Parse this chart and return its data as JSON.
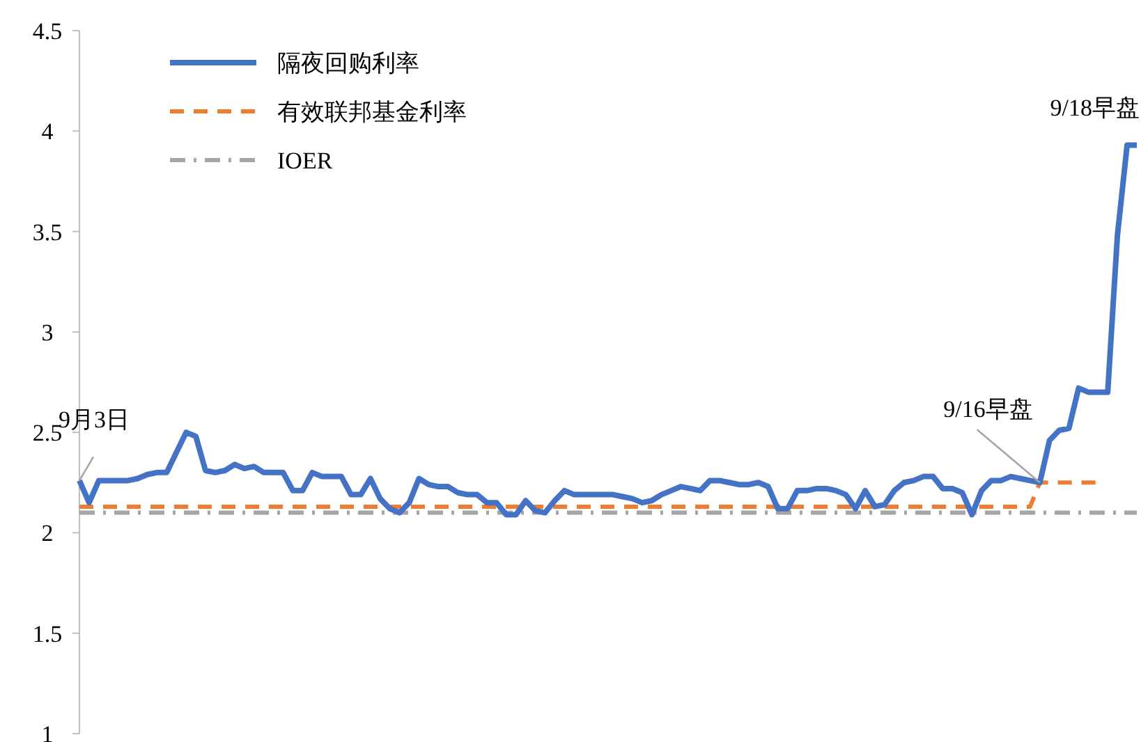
{
  "chart_data": {
    "type": "line",
    "categories": [
      null,
      null,
      null,
      null,
      null,
      null,
      null,
      null,
      null,
      null,
      null,
      null,
      null,
      null,
      null,
      null,
      null,
      null,
      null,
      null,
      null,
      null,
      null,
      null,
      null,
      null,
      null,
      null,
      null,
      null,
      null,
      null,
      null,
      null,
      null,
      null,
      null,
      null,
      null,
      null,
      null,
      null,
      null,
      null,
      null,
      null,
      null,
      null,
      null,
      null,
      null,
      null,
      null,
      null,
      null,
      null,
      null,
      null,
      null,
      null,
      null,
      null,
      null,
      null,
      null,
      null,
      null,
      null,
      null,
      null,
      null,
      null,
      null,
      null,
      null,
      null,
      null,
      null,
      null,
      null,
      null,
      null,
      null,
      null,
      null,
      null,
      null,
      null,
      null,
      null,
      null,
      null,
      null,
      null,
      null,
      null,
      null,
      null,
      null,
      null,
      null,
      null,
      null,
      null,
      null,
      null,
      null,
      null,
      null,
      null
    ],
    "series": [
      {
        "name": "隔夜回购利率",
        "color": "#4472c4",
        "line_style": "solid",
        "values": [
          2.26,
          2.15,
          2.26,
          2.26,
          2.26,
          2.26,
          2.27,
          2.29,
          2.3,
          2.3,
          2.4,
          2.5,
          2.48,
          2.31,
          2.3,
          2.31,
          2.34,
          2.32,
          2.33,
          2.3,
          2.3,
          2.3,
          2.21,
          2.21,
          2.3,
          2.28,
          2.28,
          2.28,
          2.19,
          2.19,
          2.27,
          2.17,
          2.12,
          2.1,
          2.15,
          2.27,
          2.24,
          2.23,
          2.23,
          2.2,
          2.19,
          2.19,
          2.15,
          2.15,
          2.09,
          2.09,
          2.16,
          2.11,
          2.1,
          2.16,
          2.21,
          2.19,
          2.19,
          2.19,
          2.19,
          2.19,
          2.18,
          2.17,
          2.15,
          2.16,
          2.19,
          2.21,
          2.23,
          2.22,
          2.21,
          2.26,
          2.26,
          2.25,
          2.24,
          2.24,
          2.25,
          2.23,
          2.12,
          2.12,
          2.21,
          2.21,
          2.22,
          2.22,
          2.21,
          2.19,
          2.12,
          2.21,
          2.13,
          2.14,
          2.21,
          2.25,
          2.26,
          2.28,
          2.28,
          2.22,
          2.22,
          2.2,
          2.09,
          2.21,
          2.26,
          2.26,
          2.28,
          2.27,
          2.26,
          2.25,
          2.46,
          2.51,
          2.52,
          2.72,
          2.7,
          2.7,
          2.7,
          3.48,
          3.93,
          3.93
        ]
      },
      {
        "name": "有效联邦基金利率",
        "color": "#ed7d31",
        "line_style": "dashed",
        "values": [
          2.13,
          2.13,
          2.13,
          2.13,
          2.13,
          2.13,
          2.13,
          2.13,
          2.13,
          2.13,
          2.13,
          2.13,
          2.13,
          2.13,
          2.13,
          2.13,
          2.13,
          2.13,
          2.13,
          2.13,
          2.13,
          2.13,
          2.13,
          2.13,
          2.13,
          2.13,
          2.13,
          2.13,
          2.13,
          2.13,
          2.13,
          2.13,
          2.13,
          2.13,
          2.13,
          2.13,
          2.13,
          2.13,
          2.13,
          2.13,
          2.13,
          2.13,
          2.13,
          2.13,
          2.13,
          2.13,
          2.13,
          2.13,
          2.13,
          2.13,
          2.13,
          2.13,
          2.13,
          2.13,
          2.13,
          2.13,
          2.13,
          2.13,
          2.13,
          2.13,
          2.13,
          2.13,
          2.13,
          2.13,
          2.13,
          2.13,
          2.13,
          2.13,
          2.13,
          2.13,
          2.13,
          2.13,
          2.13,
          2.13,
          2.13,
          2.13,
          2.13,
          2.13,
          2.13,
          2.13,
          2.13,
          2.13,
          2.13,
          2.13,
          2.13,
          2.13,
          2.13,
          2.13,
          2.13,
          2.13,
          2.13,
          2.13,
          2.13,
          2.13,
          2.13,
          2.13,
          2.13,
          2.13,
          2.13,
          2.25,
          2.25,
          2.25,
          2.25,
          2.25,
          2.25,
          2.25,
          null,
          null,
          null,
          null
        ]
      },
      {
        "name": "IOER",
        "color": "#a5a5a5",
        "line_style": "dashdot",
        "values": [
          2.1,
          2.1,
          2.1,
          2.1,
          2.1,
          2.1,
          2.1,
          2.1,
          2.1,
          2.1,
          2.1,
          2.1,
          2.1,
          2.1,
          2.1,
          2.1,
          2.1,
          2.1,
          2.1,
          2.1,
          2.1,
          2.1,
          2.1,
          2.1,
          2.1,
          2.1,
          2.1,
          2.1,
          2.1,
          2.1,
          2.1,
          2.1,
          2.1,
          2.1,
          2.1,
          2.1,
          2.1,
          2.1,
          2.1,
          2.1,
          2.1,
          2.1,
          2.1,
          2.1,
          2.1,
          2.1,
          2.1,
          2.1,
          2.1,
          2.1,
          2.1,
          2.1,
          2.1,
          2.1,
          2.1,
          2.1,
          2.1,
          2.1,
          2.1,
          2.1,
          2.1,
          2.1,
          2.1,
          2.1,
          2.1,
          2.1,
          2.1,
          2.1,
          2.1,
          2.1,
          2.1,
          2.1,
          2.1,
          2.1,
          2.1,
          2.1,
          2.1,
          2.1,
          2.1,
          2.1,
          2.1,
          2.1,
          2.1,
          2.1,
          2.1,
          2.1,
          2.1,
          2.1,
          2.1,
          2.1,
          2.1,
          2.1,
          2.1,
          2.1,
          2.1,
          2.1,
          2.1,
          2.1,
          2.1,
          2.1,
          2.1,
          2.1,
          2.1,
          2.1,
          2.1,
          2.1,
          2.1,
          2.1,
          2.1,
          2.1
        ]
      }
    ],
    "ylim": [
      1,
      4.5
    ],
    "yticks": [
      1,
      1.5,
      2,
      2.5,
      3,
      3.5,
      4,
      4.5
    ],
    "tick_labels": "y",
    "grid": false,
    "legend": "top left",
    "marker": "none",
    "annotations": [
      "9月3日",
      "9/16早盘",
      "9/18早盘"
    ]
  }
}
